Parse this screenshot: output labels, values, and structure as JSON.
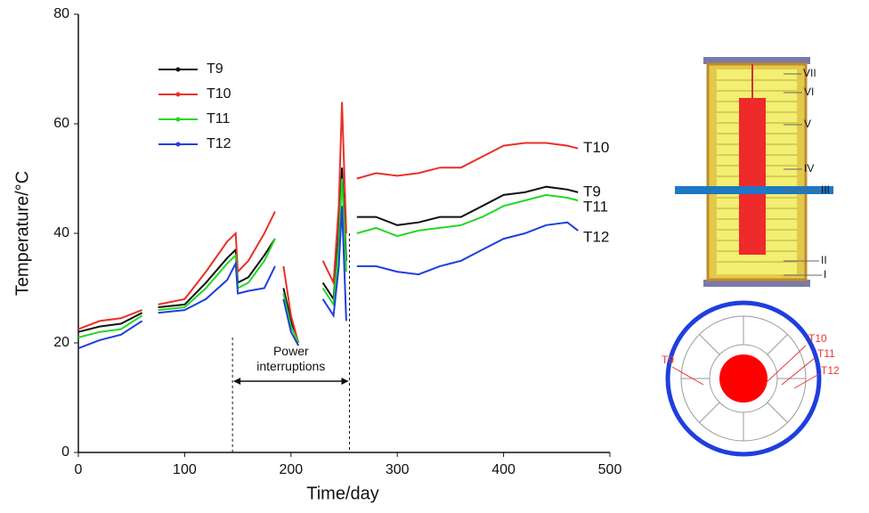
{
  "chart_data": {
    "type": "line",
    "x_label": "Time/day",
    "y_label": "Temperature/°C",
    "xlim": [
      0,
      500
    ],
    "xticks": [
      0,
      100,
      200,
      300,
      400,
      500
    ],
    "ylim": [
      0,
      80
    ],
    "yticks": [
      0,
      20,
      40,
      60,
      80
    ],
    "x": [
      0,
      20,
      40,
      60,
      68,
      75,
      100,
      120,
      140,
      148,
      150,
      160,
      175,
      185,
      188,
      193,
      200,
      207,
      215,
      230,
      240,
      245,
      248,
      252,
      258,
      262,
      280,
      300,
      320,
      340,
      360,
      380,
      400,
      420,
      440,
      460,
      470
    ],
    "series": [
      {
        "name": "T9",
        "color": "#111111",
        "values": [
          22,
          23,
          23.5,
          25.5,
          null,
          26.5,
          27,
          31,
          35.5,
          37,
          31,
          32,
          36,
          39,
          null,
          30,
          24,
          20,
          null,
          31,
          28,
          40,
          52,
          35,
          null,
          43,
          43,
          41.5,
          42,
          43,
          43,
          45,
          47,
          47.5,
          48.5,
          48,
          47.5
        ]
      },
      {
        "name": "T10",
        "color": "#e8312a",
        "values": [
          22.5,
          24,
          24.5,
          26,
          null,
          27,
          28,
          33,
          38.5,
          40,
          33,
          35,
          40,
          44,
          null,
          34,
          25,
          20,
          null,
          35,
          31,
          45,
          64,
          40,
          null,
          50,
          51,
          50.5,
          51,
          52,
          52,
          54,
          56,
          56.5,
          56.5,
          56,
          55.5
        ]
      },
      {
        "name": "T11",
        "color": "#22d822",
        "values": [
          21,
          22,
          22.5,
          25,
          null,
          26,
          26.5,
          30,
          34.5,
          36,
          30,
          31,
          35,
          39,
          null,
          29,
          23,
          20,
          null,
          30,
          27,
          38,
          50,
          33,
          null,
          40,
          41,
          39.5,
          40.5,
          41,
          41.5,
          43,
          45,
          46,
          47,
          46.5,
          46
        ]
      },
      {
        "name": "T12",
        "color": "#1f3fdd",
        "values": [
          19,
          20.5,
          21.5,
          24,
          null,
          25.5,
          26,
          28,
          31.5,
          34.5,
          29,
          29.5,
          30,
          34,
          null,
          28,
          22,
          19.5,
          null,
          28,
          25,
          34,
          45,
          24,
          null,
          34,
          34,
          33,
          32.5,
          34,
          35,
          37,
          39,
          40,
          41.5,
          42,
          40.5
        ]
      }
    ],
    "annotations": [
      {
        "text": "Power interruptions",
        "x": [
          145,
          255
        ]
      }
    ]
  },
  "diagram": {
    "levels": [
      "VII",
      "VI",
      "V",
      "IV",
      "III",
      "II",
      "I"
    ],
    "sensors": [
      "T9",
      "T10",
      "T11",
      "T12"
    ]
  }
}
